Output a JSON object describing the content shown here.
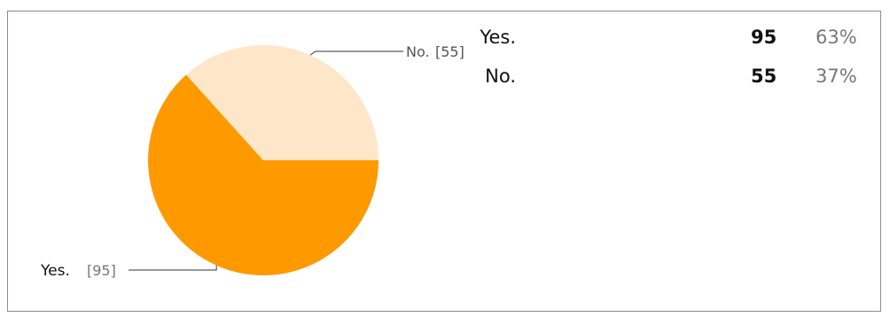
{
  "chart_data": {
    "type": "pie",
    "categories": [
      "Yes.",
      "No."
    ],
    "values": [
      95,
      55
    ],
    "slice_labels": [
      "Yes.",
      "No."
    ],
    "slice_value_labels": [
      "[95]",
      "[55]"
    ],
    "colors": [
      "#ff9900",
      "#fde7c8"
    ],
    "title": "",
    "legend": "none"
  },
  "summary": {
    "rows": [
      {
        "label": "Yes.",
        "count": "95",
        "percent": "63%"
      },
      {
        "label": "No.",
        "count": "55",
        "percent": "37%"
      }
    ]
  }
}
